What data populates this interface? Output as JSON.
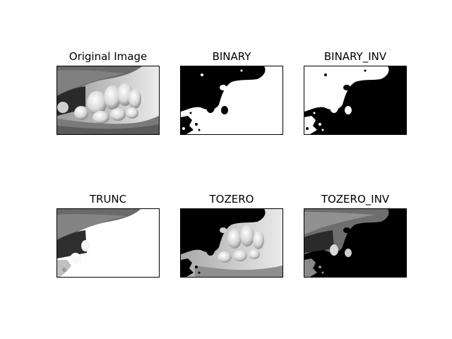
{
  "panels": [
    {
      "id": "original",
      "title": "Original Image"
    },
    {
      "id": "binary",
      "title": "BINARY"
    },
    {
      "id": "binary_inv",
      "title": "BINARY_INV"
    },
    {
      "id": "trunc",
      "title": "TRUNC"
    },
    {
      "id": "tozero",
      "title": "TOZERO"
    },
    {
      "id": "tozero_inv",
      "title": "TOZERO_INV"
    }
  ]
}
